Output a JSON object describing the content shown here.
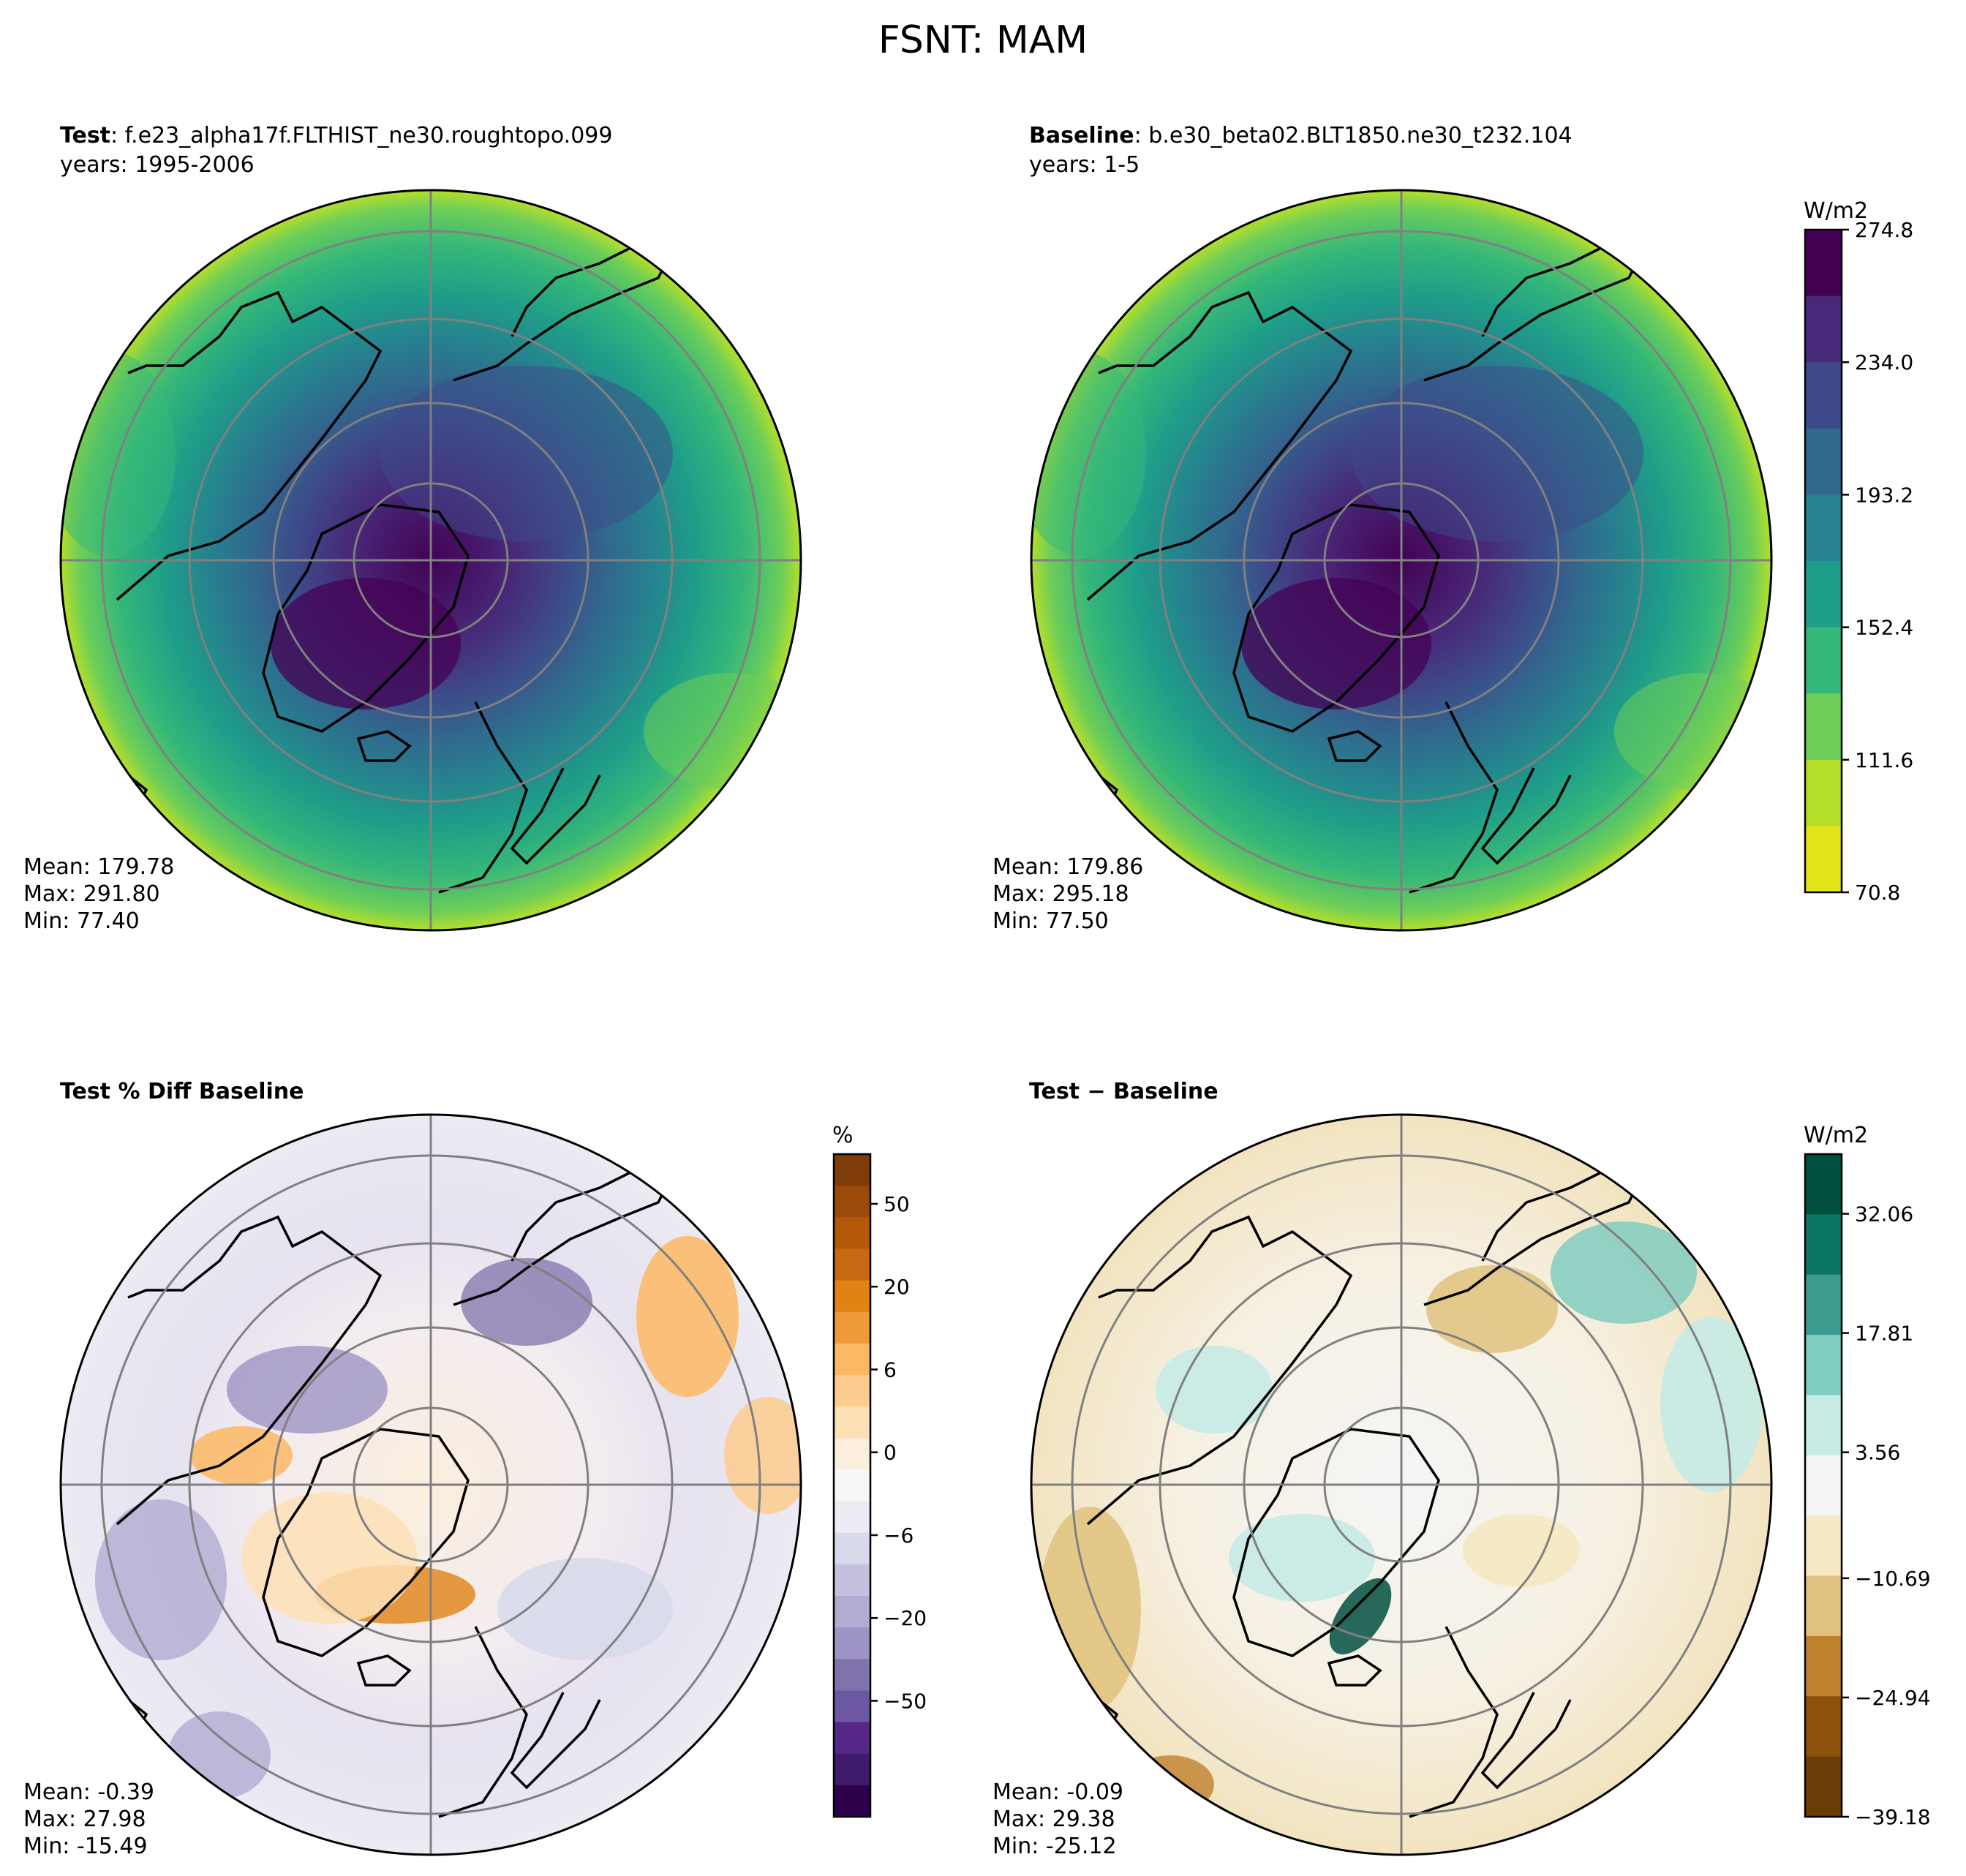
{
  "figure": {
    "title": "FSNT: MAM"
  },
  "panels": {
    "test": {
      "title_bold": "Test",
      "title_rest": ": f.e23_alpha17f.FLTHIST_ne30.roughtopo.099",
      "subtitle": "years: 1995-2006",
      "stats": {
        "mean": "Mean: 179.78",
        "max": "Max: 291.80",
        "min": "Min: 77.40"
      }
    },
    "baseline": {
      "title_bold": "Baseline",
      "title_rest": ": b.e30_beta02.BLT1850.ne30_t232.104",
      "subtitle": "years: 1-5",
      "stats": {
        "mean": "Mean: 179.86",
        "max": "Max: 295.18",
        "min": "Min: 77.50"
      }
    },
    "pctdiff": {
      "title_bold": "Test % Diff Baseline",
      "stats": {
        "mean": "Mean: -0.39",
        "max": "Max: 27.98",
        "min": "Min: -15.49"
      }
    },
    "diff": {
      "title_bold": "Test − Baseline",
      "stats": {
        "mean": "Mean: -0.09",
        "max": "Max: 29.38",
        "min": "Min: -25.12"
      }
    }
  },
  "chart_data": [
    {
      "type": "heatmap",
      "projection": "north-polar-stereographic",
      "title": "Test: f.e23_alpha17f.FLTHIST_ne30.roughtopo.099",
      "variable": "FSNT",
      "season": "MAM",
      "summary": {
        "mean": 179.78,
        "max": 291.8,
        "min": 77.4
      },
      "colormap": "viridis",
      "colorbar_shared_with": "Baseline"
    },
    {
      "type": "heatmap",
      "projection": "north-polar-stereographic",
      "title": "Baseline: b.e30_beta02.BLT1850.ne30_t232.104",
      "variable": "FSNT",
      "season": "MAM",
      "summary": {
        "mean": 179.86,
        "max": 295.18,
        "min": 77.5
      },
      "colormap": "viridis",
      "colorbar": {
        "label": "W/m2",
        "range": [
          70.8,
          295.18
        ],
        "ticks": [
          "70.8",
          "111.6",
          "152.4",
          "193.2",
          "234.0",
          "274.8"
        ],
        "levels": 11,
        "colors": [
          "#440154",
          "#482878",
          "#3e4989",
          "#31688e",
          "#26828e",
          "#1f9e89",
          "#35b779",
          "#6ece58",
          "#b5de2b",
          "#e2e418"
        ]
      }
    },
    {
      "type": "heatmap",
      "projection": "north-polar-stereographic",
      "title": "Test % Diff Baseline",
      "summary": {
        "mean": -0.39,
        "max": 27.98,
        "min": -15.49
      },
      "colormap": "PuOr_r",
      "colorbar": {
        "label": "%",
        "ticks": [
          "50",
          "20",
          "6",
          "0",
          "−6",
          "−20",
          "−50"
        ],
        "colors": [
          "#7f3b08",
          "#9a4a09",
          "#b35806",
          "#c96812",
          "#e08214",
          "#ee9a3a",
          "#fdb863",
          "#fdcb8e",
          "#fee0b6",
          "#fbeedd",
          "#f7f7f7",
          "#eceaf3",
          "#d8daeb",
          "#c4c0de",
          "#b2abd2",
          "#9d93c4",
          "#8073ac",
          "#6c58a2",
          "#542788",
          "#401a6b",
          "#2d004b"
        ]
      }
    },
    {
      "type": "heatmap",
      "projection": "north-polar-stereographic",
      "title": "Test − Baseline",
      "summary": {
        "mean": -0.09,
        "max": 29.38,
        "min": -25.12
      },
      "colormap": "BrBG",
      "colorbar": {
        "label": "W/m2",
        "ticks": [
          "32.06",
          "17.81",
          "3.56",
          "−10.69",
          "−24.94",
          "−39.18"
        ],
        "colors": [
          "#01503f",
          "#0d7566",
          "#3c9b8f",
          "#80cdc1",
          "#c7eae5",
          "#f5f5f5",
          "#f6e8c3",
          "#dfc27d",
          "#bf812d",
          "#8c510a",
          "#6b3d08"
        ]
      }
    }
  ]
}
